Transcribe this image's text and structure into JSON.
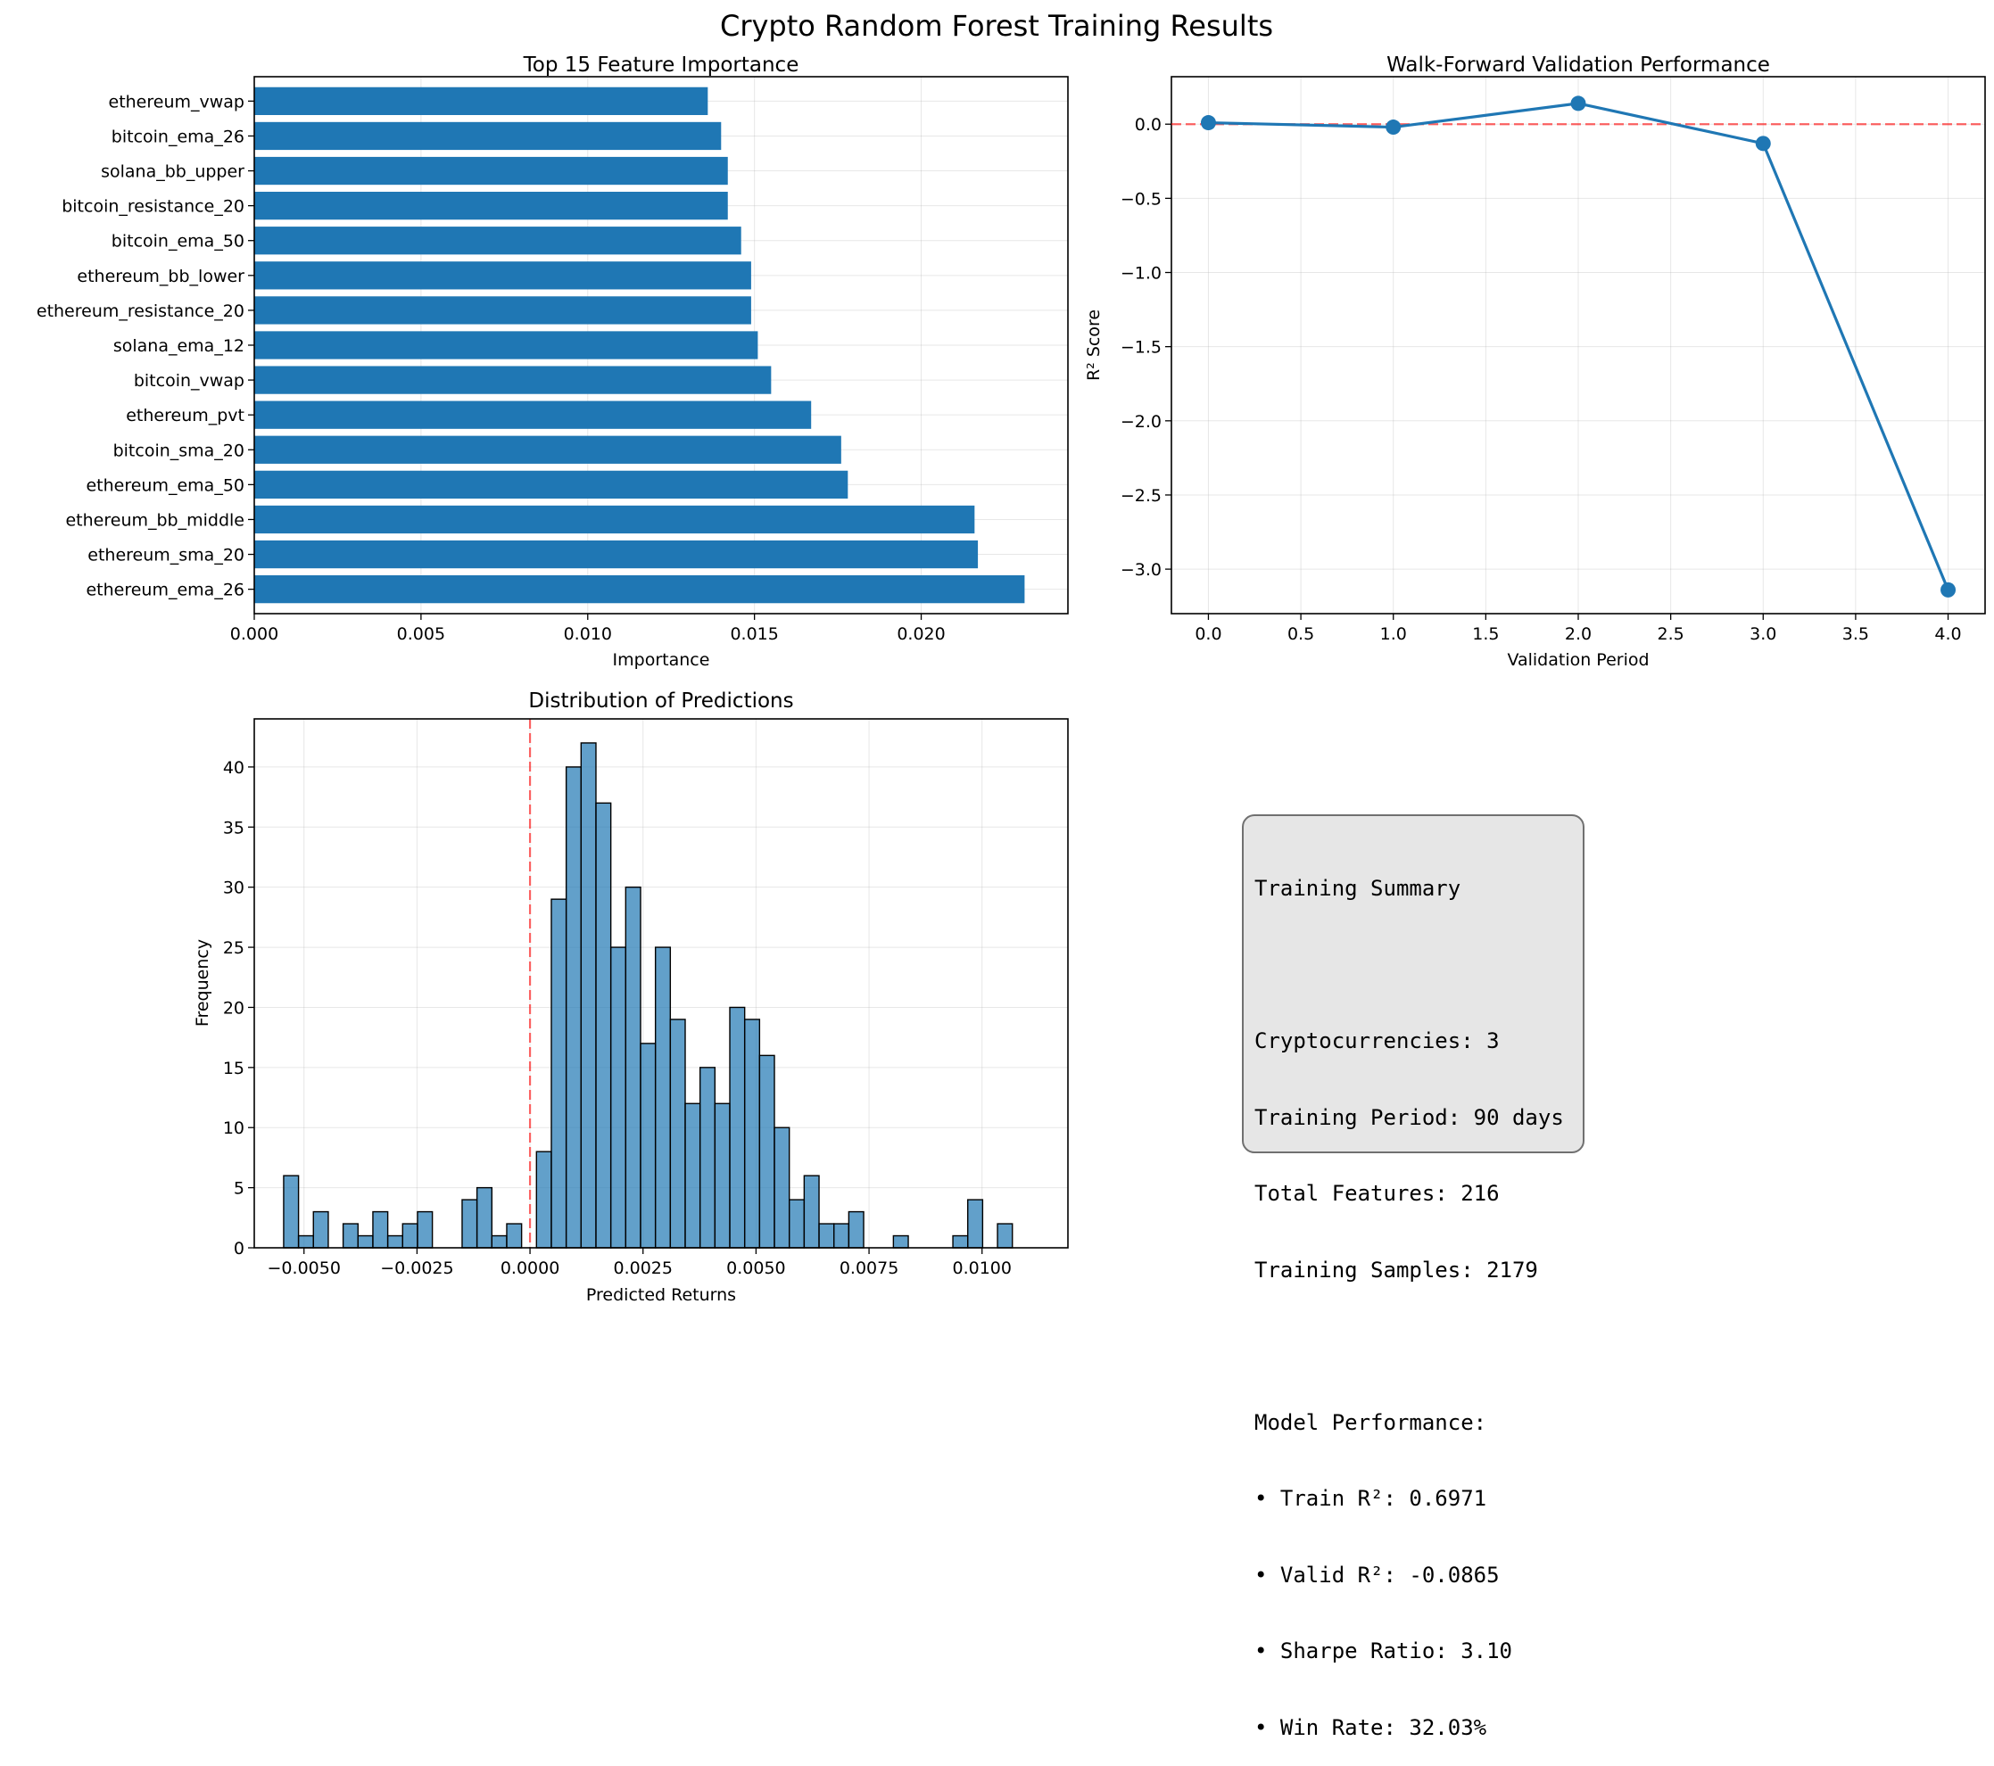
{
  "figure_title": "Crypto Random Forest Training Results",
  "chart_data": [
    {
      "type": "bar",
      "orientation": "horizontal",
      "title": "Top 15 Feature Importance",
      "xlabel": "Importance",
      "ylabel": "",
      "xlim": [
        0,
        0.0244
      ],
      "xticks": [
        "0.000",
        "0.005",
        "0.010",
        "0.015",
        "0.020"
      ],
      "grid": true,
      "color": "#1f77b4",
      "categories": [
        "ethereum_ema_26",
        "ethereum_sma_20",
        "ethereum_bb_middle",
        "ethereum_ema_50",
        "bitcoin_sma_20",
        "ethereum_pvt",
        "bitcoin_vwap",
        "solana_ema_12",
        "ethereum_resistance_20",
        "ethereum_bb_lower",
        "bitcoin_ema_50",
        "bitcoin_resistance_20",
        "solana_bb_upper",
        "bitcoin_ema_26",
        "ethereum_vwap"
      ],
      "values": [
        0.0231,
        0.0217,
        0.0216,
        0.0178,
        0.0176,
        0.0167,
        0.0155,
        0.0151,
        0.0149,
        0.0149,
        0.0146,
        0.0142,
        0.0142,
        0.014,
        0.0136
      ]
    },
    {
      "type": "line",
      "title": "Walk-Forward Validation Performance",
      "xlabel": "Validation Period",
      "ylabel": "R² Score",
      "xlim": [
        -0.2,
        4.2
      ],
      "ylim": [
        -3.3,
        0.32
      ],
      "xticks": [
        "0.0",
        "0.5",
        "1.0",
        "1.5",
        "2.0",
        "2.5",
        "3.0",
        "3.5",
        "4.0"
      ],
      "yticks": [
        "0.0",
        "−0.5",
        "−1.0",
        "−1.5",
        "−2.0",
        "−2.5",
        "−3.0"
      ],
      "grid": true,
      "color": "#1f77b4",
      "reference_line": {
        "y": 0,
        "style": "dashed",
        "color": "#ff0000"
      },
      "x": [
        0,
        1,
        2,
        3,
        4
      ],
      "y": [
        0.01,
        -0.02,
        0.14,
        -0.13,
        -3.14
      ]
    },
    {
      "type": "histogram",
      "title": "Distribution of Predictions",
      "xlabel": "Predicted Returns",
      "ylabel": "Frequency",
      "xlim": [
        -0.0061,
        0.0119
      ],
      "ylim": [
        0,
        44
      ],
      "xticks": [
        "−0.0050",
        "−0.0025",
        "0.0000",
        "0.0025",
        "0.0050",
        "0.0075",
        "0.0100"
      ],
      "yticks": [
        "0",
        "5",
        "10",
        "15",
        "20",
        "25",
        "30",
        "35",
        "40"
      ],
      "grid": true,
      "color": "#1f77b4",
      "reference_line": {
        "x": 0,
        "style": "dashed",
        "color": "#ff0000"
      },
      "bin_start": -0.00545,
      "bin_width": 0.000329,
      "counts": [
        6,
        1,
        3,
        0,
        2,
        1,
        3,
        1,
        2,
        3,
        0,
        0,
        4,
        5,
        1,
        2,
        0,
        8,
        29,
        40,
        42,
        37,
        25,
        30,
        17,
        25,
        19,
        12,
        15,
        12,
        20,
        19,
        16,
        10,
        4,
        6,
        2,
        2,
        3,
        0,
        0,
        1,
        0,
        0,
        0,
        1,
        4,
        0,
        2
      ]
    }
  ],
  "summary": {
    "lines": [
      "Training Summary",
      "",
      "Cryptocurrencies: 3",
      "Training Period: 90 days",
      "Total Features: 216",
      "Training Samples: 2179",
      "",
      "Model Performance:",
      "• Train R²: 0.6971",
      "• Valid R²: -0.0865",
      "• Sharpe Ratio: 3.10",
      "• Win Rate: 32.03%"
    ]
  }
}
